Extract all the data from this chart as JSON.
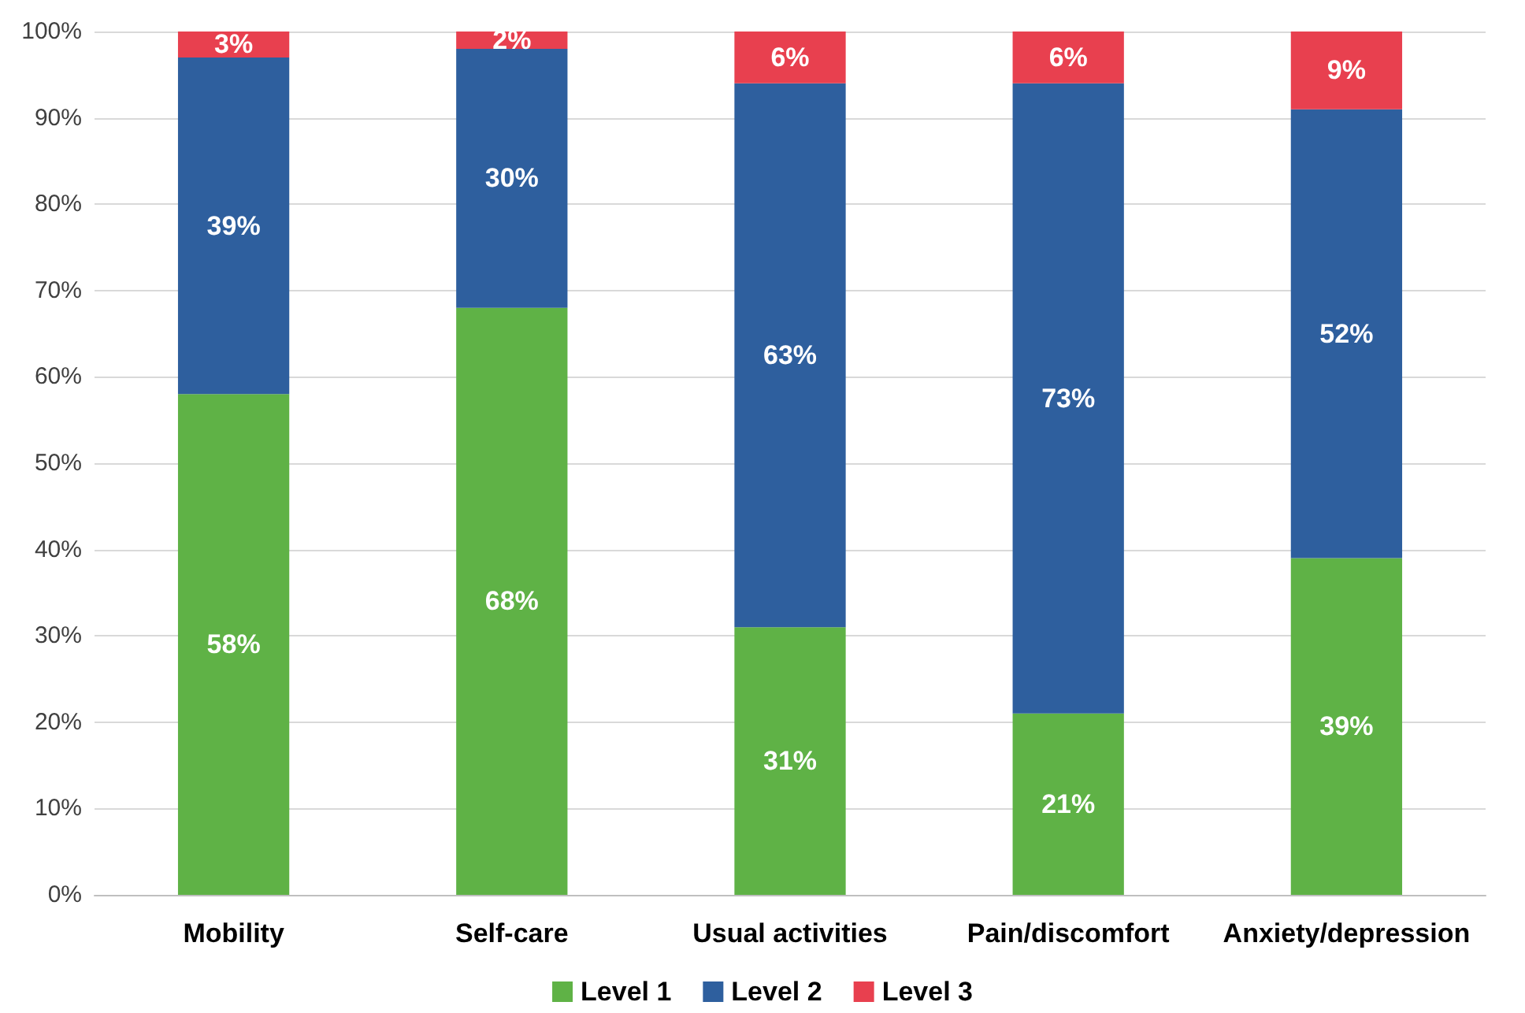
{
  "chart_data": {
    "type": "bar",
    "stacked": true,
    "categories": [
      "Mobility",
      "Self-care",
      "Usual activities",
      "Pain/discomfort",
      "Anxiety/depression"
    ],
    "series": [
      {
        "name": "Level 1",
        "color": "#5fb246",
        "values": [
          58,
          68,
          31,
          21,
          39
        ],
        "value_labels": [
          "58%",
          "68%",
          "31%",
          "21%",
          "39%"
        ]
      },
      {
        "name": "Level 2",
        "color": "#2e5f9e",
        "values": [
          39,
          30,
          63,
          73,
          52
        ],
        "value_labels": [
          "39%",
          "30%",
          "63%",
          "73%",
          "52%"
        ]
      },
      {
        "name": "Level 3",
        "color": "#e8404f",
        "values": [
          3,
          2,
          6,
          6,
          9
        ],
        "value_labels": [
          "3%",
          "2%",
          "6%",
          "6%",
          "9%"
        ]
      }
    ],
    "ylim": [
      0,
      100
    ],
    "yticks": [
      {
        "value": 0,
        "label": "0%"
      },
      {
        "value": 10,
        "label": "10%"
      },
      {
        "value": 20,
        "label": "20%"
      },
      {
        "value": 30,
        "label": "30%"
      },
      {
        "value": 40,
        "label": "40%"
      },
      {
        "value": 50,
        "label": "50%"
      },
      {
        "value": 60,
        "label": "60%"
      },
      {
        "value": 70,
        "label": "70%"
      },
      {
        "value": 80,
        "label": "80%"
      },
      {
        "value": 90,
        "label": "90%"
      },
      {
        "value": 100,
        "label": "100%"
      }
    ],
    "grid": "y",
    "legend": "bottom"
  }
}
